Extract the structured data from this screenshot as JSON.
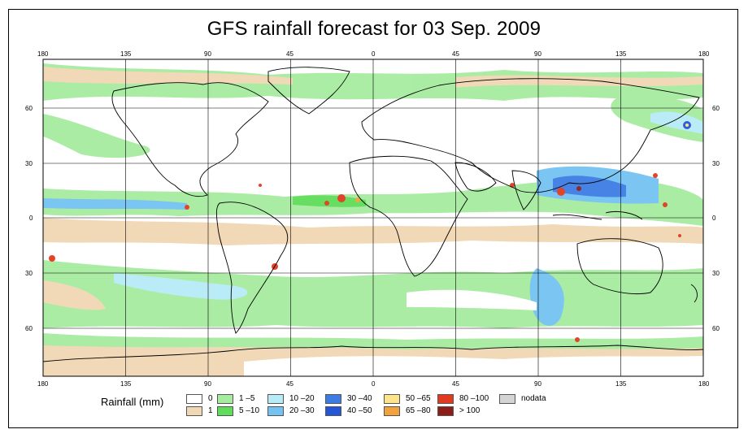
{
  "title": "GFS rainfall forecast for 03 Sep. 2009",
  "axes": {
    "top_lon_labels": [
      "180",
      "135",
      "90",
      "45",
      "0",
      "45",
      "90",
      "135",
      "180"
    ],
    "bottom_lon_labels": [
      "180",
      "135",
      "90",
      "45",
      "0",
      "45",
      "90",
      "135",
      "180"
    ],
    "left_lat_labels": [
      "60",
      "30",
      "0",
      "30",
      "60"
    ],
    "right_lat_labels": [
      "60",
      "30",
      "0",
      "30",
      "60"
    ]
  },
  "legend": {
    "title": "Rainfall (mm)",
    "items": [
      {
        "label": "0",
        "color": "#ffffff"
      },
      {
        "label": "1",
        "color": "#f1d8b4"
      },
      {
        "label": "1 –5",
        "color": "#a6ec9f"
      },
      {
        "label": "5 –10",
        "color": "#5fdd5a"
      },
      {
        "label": "10 –20",
        "color": "#b7ecf7"
      },
      {
        "label": "20 –30",
        "color": "#73c2f2"
      },
      {
        "label": "30 –40",
        "color": "#3d7de3"
      },
      {
        "label": "40 –50",
        "color": "#2357d8"
      },
      {
        "label": "50 –65",
        "color": "#fde48a"
      },
      {
        "label": "65 –80",
        "color": "#f2a23a"
      },
      {
        "label": "80 –100",
        "color": "#e23a1e"
      },
      {
        "label": "> 100",
        "color": "#8f1d17"
      },
      {
        "label": "nodata",
        "color": "#d4d4d4"
      }
    ]
  }
}
